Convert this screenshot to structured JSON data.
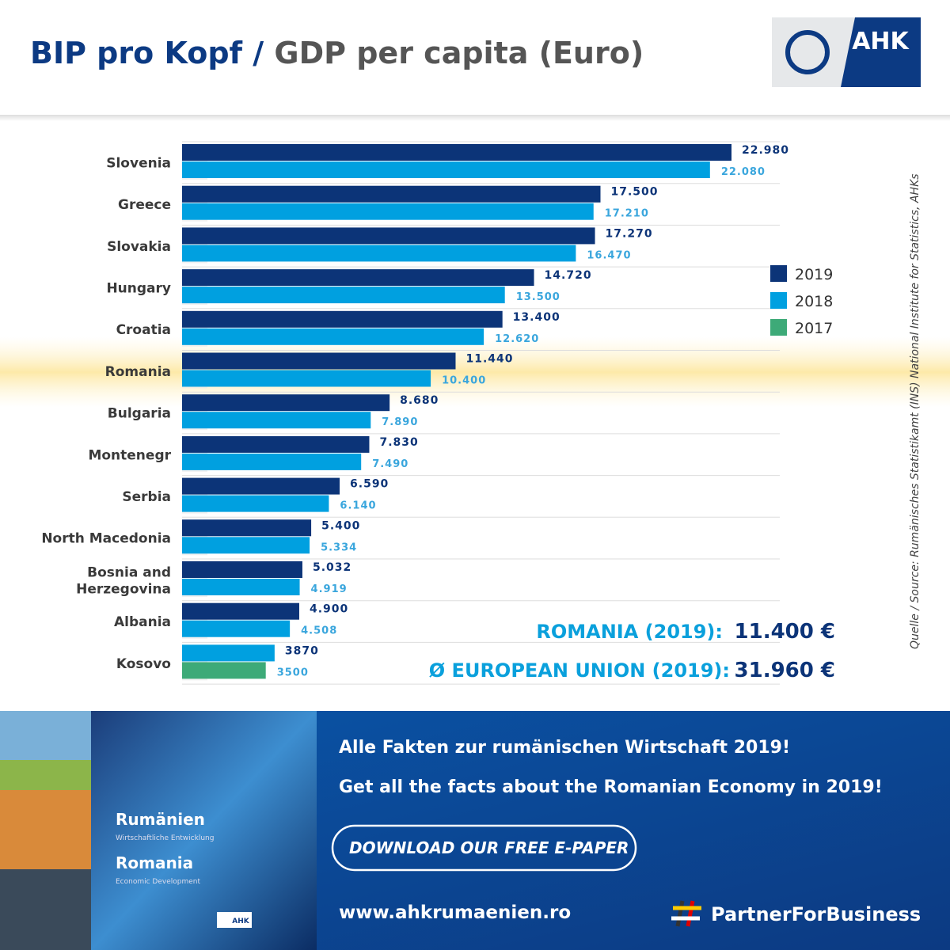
{
  "header": {
    "title": "BIP pro Kopf /",
    "title_en": "GDP per capita (Euro)",
    "logo": "AHK"
  },
  "chart_data": {
    "type": "hbar",
    "categories": [
      "Slovenia",
      "Greece",
      "Slovakia",
      "Hungary",
      "Croatia",
      "Romania",
      "Bulgaria",
      "Montenegr",
      "Serbia",
      "North Macedonia",
      "Bosnia and Herzegovina",
      "Albania",
      "Kosovo"
    ],
    "highlight": "Romania",
    "xlim": [
      0,
      25000
    ],
    "legend": "right",
    "series": [
      {
        "name": "2019",
        "color": "#0c3478",
        "values": [
          22980,
          17500,
          17270,
          14720,
          13400,
          11440,
          8680,
          7830,
          6590,
          5400,
          5032,
          4900,
          null
        ],
        "value_labels": [
          "22.980",
          "17.500",
          "17.270",
          "14.720",
          "13.400",
          "11.440",
          "8.680",
          "7.830",
          "6.590",
          "5.400",
          "5.032",
          "4.900",
          null
        ]
      },
      {
        "name": "2018",
        "color": "#00a0e0",
        "values": [
          22080,
          17210,
          16470,
          13500,
          12620,
          10400,
          7890,
          7490,
          6140,
          5334,
          4919,
          4508,
          3870
        ],
        "value_labels": [
          "22.080",
          "17.210",
          "16.470",
          "13.500",
          "12.620",
          "10.400",
          "7.890",
          "7.490",
          "6.140",
          "5.334",
          "4.919",
          "4.508",
          "3870"
        ]
      },
      {
        "name": "2017",
        "color": "#3daa78",
        "values": [
          null,
          null,
          null,
          null,
          null,
          null,
          null,
          null,
          null,
          null,
          null,
          null,
          3500
        ],
        "value_labels": [
          null,
          null,
          null,
          null,
          null,
          null,
          null,
          null,
          null,
          null,
          null,
          null,
          "3500"
        ]
      }
    ]
  },
  "summary": [
    {
      "label": "ROMANIA (2019):",
      "value": "11.400 €"
    },
    {
      "label": "Ø EUROPEAN UNION (2019):",
      "value": "31.960 €"
    }
  ],
  "source": "Quelle / Source: Rumänisches Statistikamt (INS) National Institute for Statistics, AHKs",
  "banner": {
    "line1": "Alle Fakten zur  rumänischen Wirtschaft 2019!",
    "line2": "Get all the facts about the Romanian Economy in 2019!",
    "button": "DOWNLOAD OUR FREE E-PAPER",
    "url": "www.ahkrumaenien.ro",
    "hashtag": "PartnerForBusiness",
    "cover": {
      "title_de": "Rumänien",
      "subtitle_de": "Wirtschaftliche Entwicklung",
      "title_en": "Romania",
      "subtitle_en": "Economic Development",
      "logo": "AHK"
    }
  }
}
